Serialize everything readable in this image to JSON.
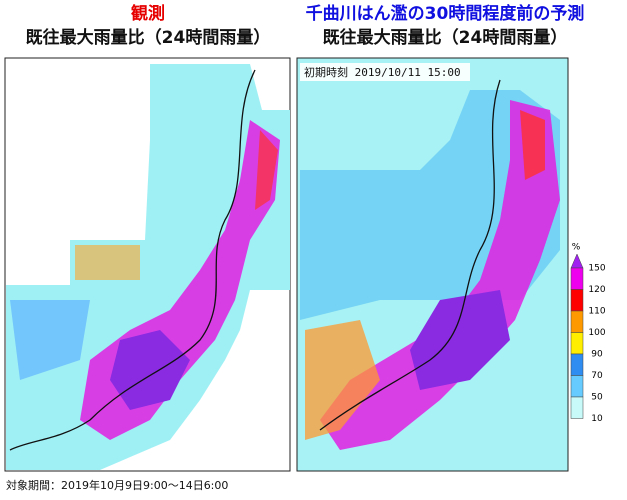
{
  "left_panel": {
    "title_red": "観測",
    "title": "既往最大雨量比（24時間雨量）"
  },
  "right_panel": {
    "title_blue": "千曲川はん濫の30時間程度前の予測",
    "title": "既往最大雨量比（24時間雨量）",
    "init_time": "初期時刻 2019/10/11 15:00"
  },
  "legend": {
    "unit": "%",
    "levels": [
      150,
      120,
      110,
      100,
      90,
      70,
      50,
      10
    ]
  },
  "footer": "対象期間：2019年10月9日9:00～14日6:00"
}
